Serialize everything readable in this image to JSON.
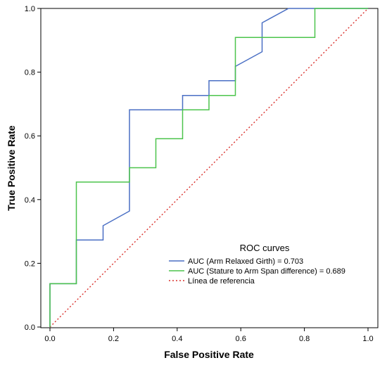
{
  "chart_data": {
    "type": "line",
    "xlabel": "False Positive Rate",
    "ylabel": "True Positive Rate",
    "xlim": [
      0,
      1
    ],
    "ylim": [
      0,
      1
    ],
    "x_ticks": [
      "0.0",
      "0.2",
      "0.4",
      "0.6",
      "0.8",
      "1.0"
    ],
    "y_ticks": [
      "0.0",
      "0.2",
      "0.4",
      "0.6",
      "0.8",
      "1.0"
    ],
    "grid": false,
    "legend": {
      "title": "ROC curves",
      "placement": "bottom-right"
    },
    "series": [
      {
        "name": "AUC (Arm Relaxed Girth) = 0.703",
        "color": "#4a6fc4",
        "style": "solid",
        "points": [
          [
            0,
            0
          ],
          [
            0,
            0.136
          ],
          [
            0.083,
            0.136
          ],
          [
            0.083,
            0.273
          ],
          [
            0.167,
            0.273
          ],
          [
            0.167,
            0.318
          ],
          [
            0.25,
            0.364
          ],
          [
            0.25,
            0.682
          ],
          [
            0.417,
            0.682
          ],
          [
            0.417,
            0.727
          ],
          [
            0.5,
            0.727
          ],
          [
            0.5,
            0.773
          ],
          [
            0.583,
            0.773
          ],
          [
            0.583,
            0.818
          ],
          [
            0.667,
            0.864
          ],
          [
            0.667,
            0.955
          ],
          [
            0.75,
            1.0
          ],
          [
            1.0,
            1.0
          ]
        ]
      },
      {
        "name": "AUC (Stature to Arm Span difference) = 0.689",
        "color": "#4cc44c",
        "style": "solid",
        "points": [
          [
            0,
            0
          ],
          [
            0,
            0.136
          ],
          [
            0.083,
            0.136
          ],
          [
            0.083,
            0.455
          ],
          [
            0.25,
            0.455
          ],
          [
            0.25,
            0.5
          ],
          [
            0.333,
            0.5
          ],
          [
            0.333,
            0.591
          ],
          [
            0.417,
            0.591
          ],
          [
            0.417,
            0.682
          ],
          [
            0.5,
            0.682
          ],
          [
            0.5,
            0.727
          ],
          [
            0.583,
            0.727
          ],
          [
            0.583,
            0.909
          ],
          [
            0.833,
            0.909
          ],
          [
            0.833,
            1.0
          ],
          [
            1.0,
            1.0
          ]
        ]
      },
      {
        "name": "Línea de referencia",
        "color": "#d9302c",
        "style": "dotted",
        "points": [
          [
            0,
            0
          ],
          [
            1,
            1
          ]
        ]
      }
    ]
  }
}
